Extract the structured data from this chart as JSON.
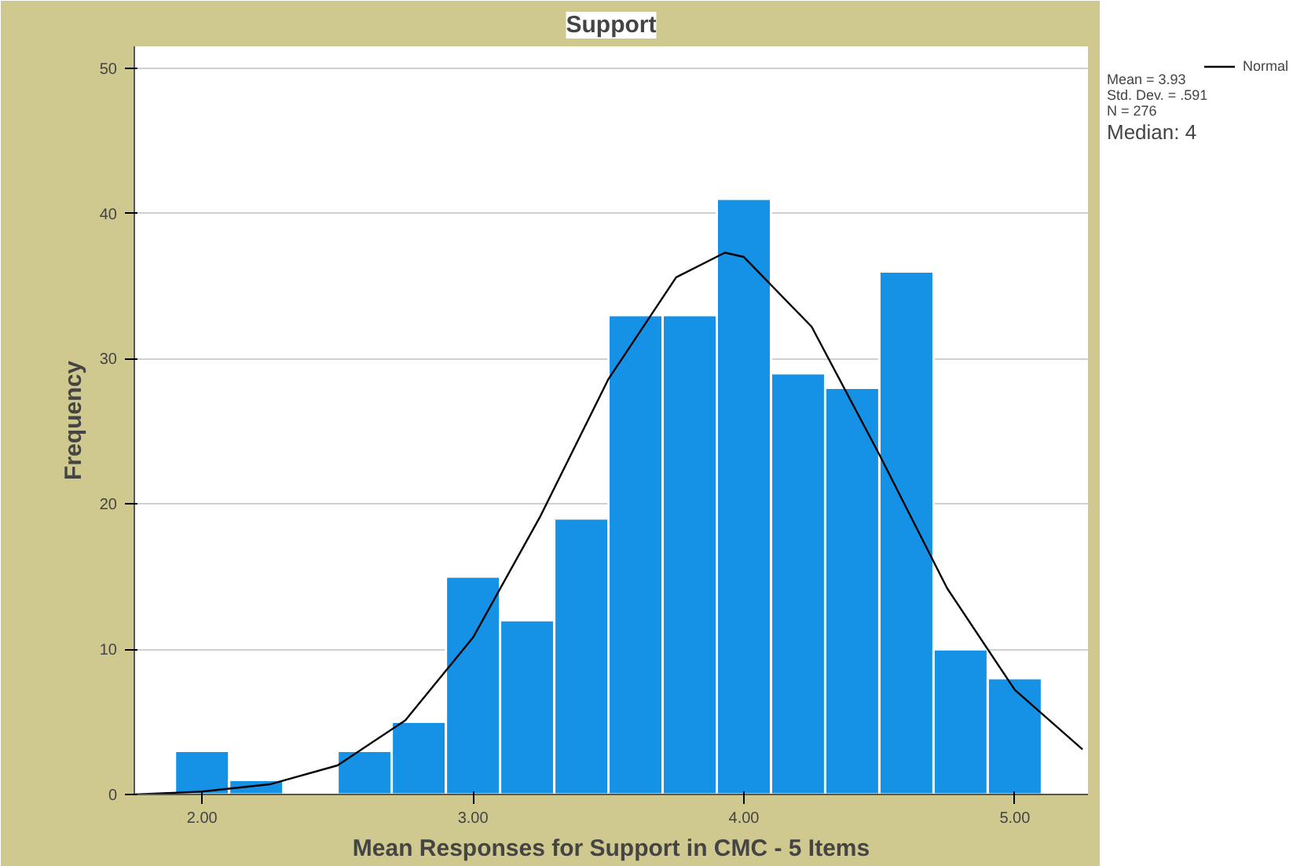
{
  "chart_data": {
    "type": "histogram",
    "title": "Support",
    "xlabel": "Mean Responses for Support in CMC - 5 Items",
    "ylabel": "Frequency",
    "bins": [
      1.9,
      2.1,
      2.3,
      2.5,
      2.7,
      2.9,
      3.1,
      3.3,
      3.5,
      3.7,
      3.9,
      4.1,
      4.3,
      4.5,
      4.7,
      4.9,
      5.1
    ],
    "values": [
      3,
      1,
      0,
      3,
      5,
      15,
      12,
      19,
      33,
      33,
      41,
      29,
      28,
      36,
      10,
      8
    ],
    "color": "#1591e5",
    "series": [
      {
        "type": "line",
        "name": "Normal",
        "color": "#000000",
        "x": [
          1.75,
          2.0,
          2.25,
          2.5,
          2.75,
          3.0,
          3.25,
          3.5,
          3.75,
          3.93,
          4.0,
          4.25,
          4.5,
          4.75,
          5.0,
          5.25
        ],
        "values": [
          0,
          0.2,
          0.7,
          2.0,
          5.1,
          10.8,
          19.2,
          28.6,
          35.6,
          37.3,
          37.0,
          32.2,
          23.4,
          14.2,
          7.2,
          3.1
        ]
      }
    ],
    "xlim": [
      1.75,
      5.27
    ],
    "ylim": [
      0,
      51.5
    ],
    "xticks": [
      {
        "value": 2,
        "label": "2.00"
      },
      {
        "value": 3,
        "label": "3.00"
      },
      {
        "value": 4,
        "label": "4.00"
      },
      {
        "value": 5,
        "label": "5.00"
      }
    ],
    "yticks": [
      0,
      10,
      20,
      30,
      40,
      50
    ],
    "grid": "y",
    "legend": "top right",
    "annotations": [
      "Mean = 3.93",
      "Std. Dev. = .591",
      "N = 276",
      "Median: 4"
    ]
  }
}
